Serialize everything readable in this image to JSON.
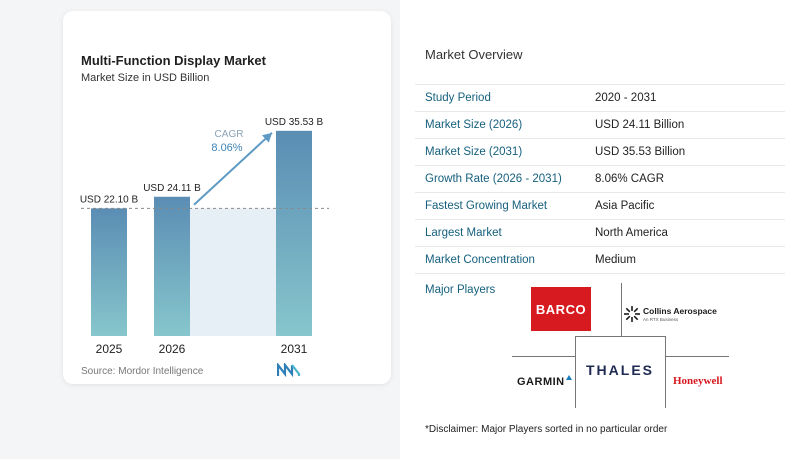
{
  "chart_data": {
    "type": "bar",
    "title": "Multi-Function Display Market",
    "subtitle": "Market Size in USD Billion",
    "categories": [
      "2025",
      "2026",
      "2031"
    ],
    "values": [
      22.1,
      24.11,
      35.53
    ],
    "data_labels": [
      "USD 22.10 B",
      "USD 24.11 B",
      "USD 35.53 B"
    ],
    "cagr_label": "CAGR",
    "cagr_value": "8.06%",
    "reference_line_value": 22.1,
    "ylim": [
      0,
      40
    ],
    "grid": false,
    "bar_color_top": "#5b8db4",
    "bar_color_bottom": "#86c6cc",
    "source": "Source: Mordor Intelligence"
  },
  "overview": {
    "title": "Market Overview",
    "rows": [
      {
        "key": "Study Period",
        "value": "2020 - 2031"
      },
      {
        "key": "Market Size (2026)",
        "value": "USD 24.11 Billion"
      },
      {
        "key": "Market Size (2031)",
        "value": "USD 35.53 Billion"
      },
      {
        "key": "Growth Rate (2026 - 2031)",
        "value": "8.06% CAGR"
      },
      {
        "key": "Fastest Growing Market",
        "value": "Asia Pacific"
      },
      {
        "key": "Largest Market",
        "value": "North America"
      },
      {
        "key": "Market Concentration",
        "value": "Medium"
      }
    ],
    "major_players_label": "Major Players",
    "players": {
      "barco": "BARCO",
      "collins": "Collins Aerospace",
      "collins_sub": "An RTX Business",
      "thales": "THALES",
      "garmin": "GARMIN",
      "honeywell": "Honeywell"
    },
    "disclaimer": "*Disclaimer: Major Players sorted in no particular order"
  }
}
